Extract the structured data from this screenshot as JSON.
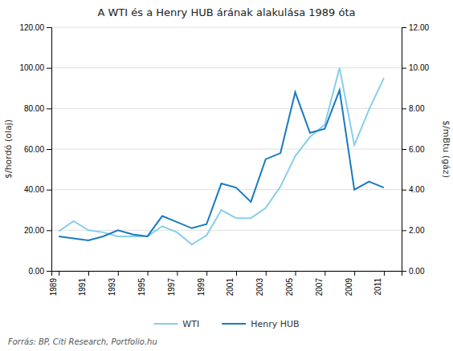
{
  "chart_data": {
    "type": "line",
    "title": "A WTI és a Henry HUB árának alakulása 1989 óta",
    "ylabel": "$/hordó (olaj)",
    "y2label": "$/mBtu (gáz)",
    "annotations": [
      "Forrás: BP, Citi Research, Portfolio.hu"
    ],
    "x": [
      1989,
      1990,
      1991,
      1992,
      1993,
      1994,
      1995,
      1996,
      1997,
      1998,
      1999,
      2000,
      2001,
      2002,
      2003,
      2004,
      2005,
      2006,
      2007,
      2008,
      2009,
      2010,
      2011
    ],
    "xlim": [
      1988.5,
      2012.2
    ],
    "xticks": [
      1989,
      1991,
      1993,
      1995,
      1997,
      1999,
      2001,
      2003,
      2005,
      2007,
      2009,
      2011
    ],
    "ylim": [
      0,
      120
    ],
    "yticks": [
      {
        "value": 0,
        "label": "0.00"
      },
      {
        "value": 20,
        "label": "20.00"
      },
      {
        "value": 40,
        "label": "40.00"
      },
      {
        "value": 60,
        "label": "60.00"
      },
      {
        "value": 80,
        "label": "80.00"
      },
      {
        "value": 100,
        "label": "100.00"
      },
      {
        "value": 120,
        "label": "120.00"
      }
    ],
    "y2lim": [
      0,
      12
    ],
    "y2ticks": [
      {
        "value": 0,
        "label": "0.00"
      },
      {
        "value": 2,
        "label": "2.00"
      },
      {
        "value": 4,
        "label": "4.00"
      },
      {
        "value": 6,
        "label": "6.00"
      },
      {
        "value": 8,
        "label": "8.00"
      },
      {
        "value": 10,
        "label": "10.00"
      },
      {
        "value": 12,
        "label": "12.00"
      }
    ],
    "grid": true,
    "legend": "bottom",
    "series": [
      {
        "name": "WTI",
        "color": "#87CEEB",
        "axis": "y",
        "values": [
          19.5,
          24.5,
          20.0,
          19.0,
          17.0,
          17.0,
          17.0,
          22.0,
          19.0,
          13.0,
          17.5,
          30.0,
          26.0,
          26.0,
          31.0,
          41.5,
          56.5,
          66.0,
          72.0,
          100.0,
          62.0,
          79.5,
          95.0
        ]
      },
      {
        "name": "Henry HUB",
        "color": "#1a7abf",
        "axis": "y2",
        "values": [
          1.7,
          1.6,
          1.5,
          1.7,
          2.0,
          1.8,
          1.7,
          2.7,
          2.4,
          2.1,
          2.3,
          4.3,
          4.1,
          3.4,
          5.5,
          5.8,
          8.8,
          6.8,
          7.0,
          8.9,
          4.0,
          4.4,
          4.1
        ]
      }
    ]
  }
}
